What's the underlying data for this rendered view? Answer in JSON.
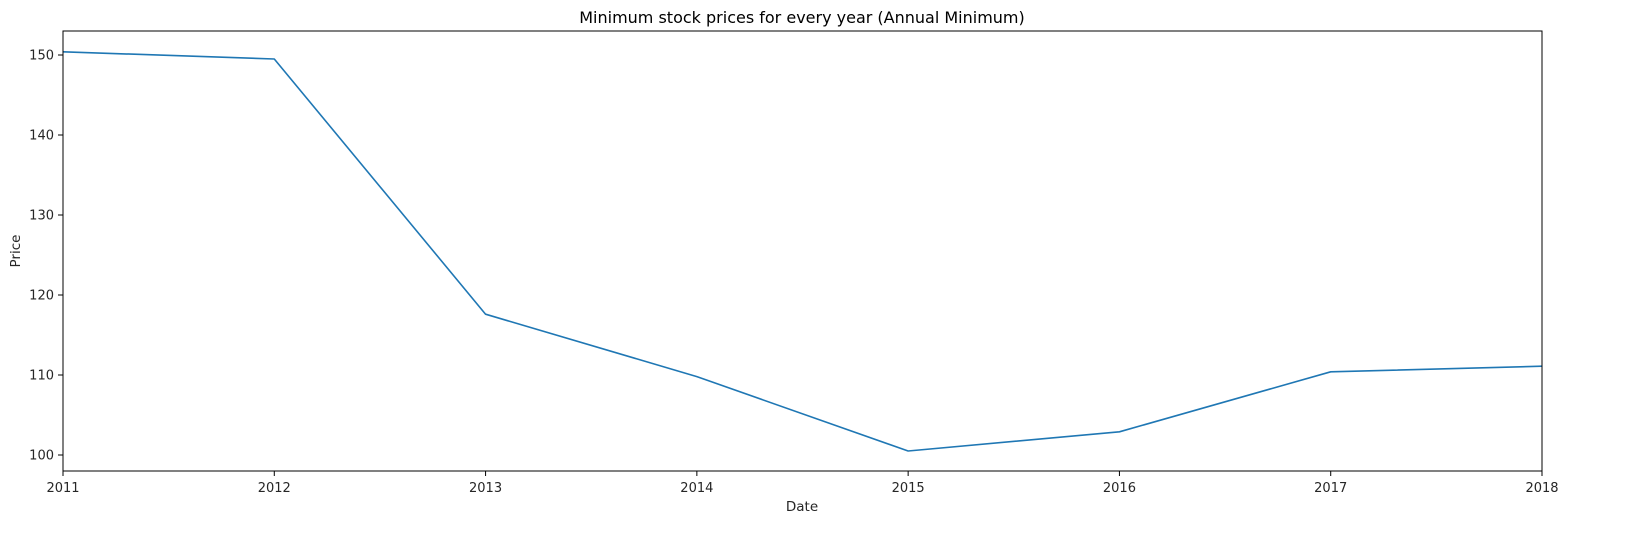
{
  "chart_data": {
    "type": "line",
    "title": "Minimum stock prices for every year (Annual Minimum)",
    "xlabel": "Date",
    "ylabel": "Price",
    "x": [
      "2011",
      "2012",
      "2013",
      "2014",
      "2015",
      "2016",
      "2017",
      "2018"
    ],
    "xlim": [
      "2011",
      "2018"
    ],
    "ylim": [
      98,
      153
    ],
    "yticks": [
      100,
      110,
      120,
      130,
      140,
      150
    ],
    "grid": false,
    "series": [
      {
        "values": [
          150.4,
          149.5,
          117.6,
          109.8,
          100.5,
          102.9,
          110.4,
          111.1
        ],
        "color": "#1f77b4"
      }
    ]
  }
}
